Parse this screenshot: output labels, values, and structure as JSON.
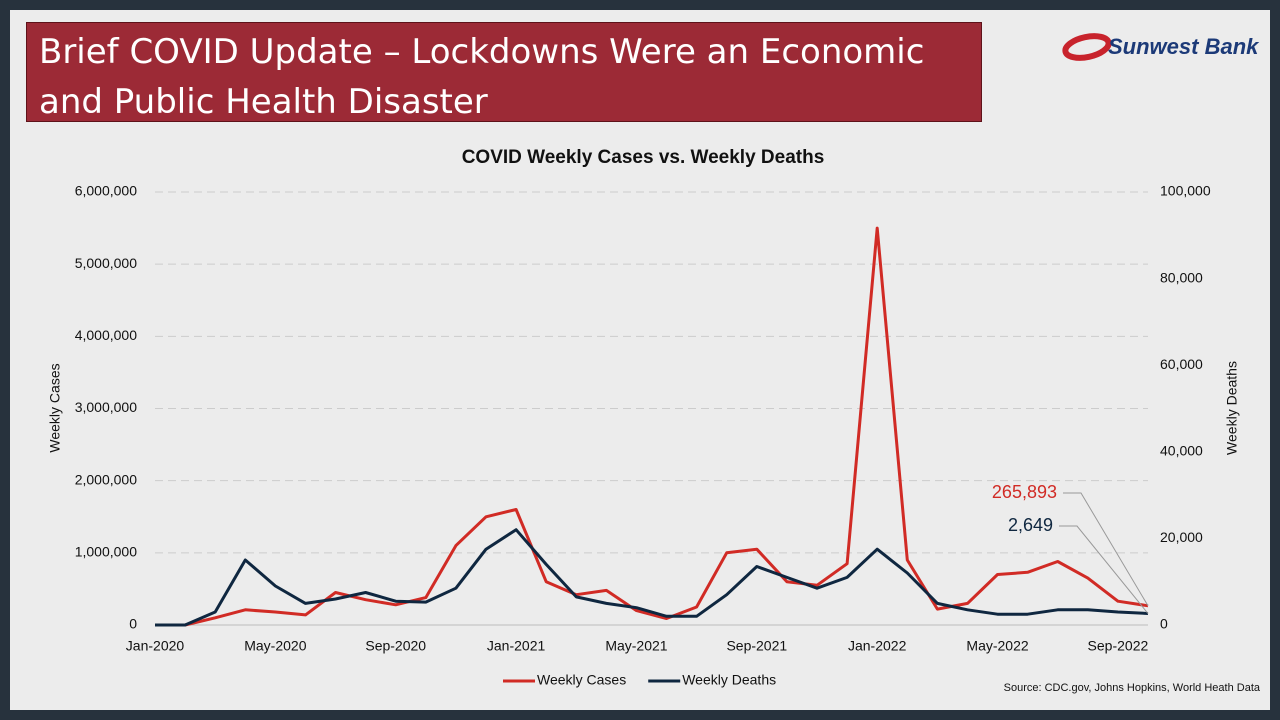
{
  "slide": {
    "title": "Brief COVID Update – Lockdowns Were an Economic and Public Health Disaster",
    "logo": "Sunwest Bank",
    "source": "Source: CDC.gov, Johns Hopkins, World Heath Data"
  },
  "chart_data": {
    "type": "line",
    "title": "COVID Weekly Cases vs. Weekly Deaths",
    "y_label": "Weekly Cases",
    "y2_label": "Weekly Deaths",
    "x": [
      "2020-01",
      "2020-02",
      "2020-03",
      "2020-04",
      "2020-05",
      "2020-06",
      "2020-07",
      "2020-08",
      "2020-09",
      "2020-10",
      "2020-11",
      "2020-12",
      "2021-01",
      "2021-02",
      "2021-03",
      "2021-04",
      "2021-05",
      "2021-06",
      "2021-07",
      "2021-08",
      "2021-09",
      "2021-10",
      "2021-11",
      "2021-12",
      "2022-01",
      "2022-02",
      "2022-03",
      "2022-04",
      "2022-05",
      "2022-06",
      "2022-07",
      "2022-08",
      "2022-09",
      "2022-10"
    ],
    "xlim": [
      "2020-01",
      "2022-10"
    ],
    "xticks": [
      {
        "value": "2020-01",
        "label": "Jan-2020"
      },
      {
        "value": "2020-05",
        "label": "May-2020"
      },
      {
        "value": "2020-09",
        "label": "Sep-2020"
      },
      {
        "value": "2021-01",
        "label": "Jan-2021"
      },
      {
        "value": "2021-05",
        "label": "May-2021"
      },
      {
        "value": "2021-09",
        "label": "Sep-2021"
      },
      {
        "value": "2022-01",
        "label": "Jan-2022"
      },
      {
        "value": "2022-05",
        "label": "May-2022"
      },
      {
        "value": "2022-09",
        "label": "Sep-2022"
      }
    ],
    "ylim": [
      0,
      6000000
    ],
    "yticks": [
      0,
      {
        "value": 1000000,
        "label": "1,000,000"
      },
      {
        "value": 2000000,
        "label": "2,000,000"
      },
      {
        "value": 3000000,
        "label": "3,000,000"
      },
      {
        "value": 4000000,
        "label": "4,000,000"
      },
      {
        "value": 5000000,
        "label": "5,000,000"
      },
      {
        "value": 6000000,
        "label": "6,000,000"
      }
    ],
    "y2lim": [
      0,
      100000
    ],
    "y2ticks": [
      0,
      {
        "value": 20000,
        "label": "20,000"
      },
      {
        "value": 40000,
        "label": "40,000"
      },
      {
        "value": 60000,
        "label": "60,000"
      },
      {
        "value": 80000,
        "label": "80,000"
      },
      {
        "value": 100000,
        "label": "100,000"
      }
    ],
    "grid": true,
    "legend": "bottom",
    "series": [
      {
        "name": "Weekly Cases",
        "color": "#d12b25",
        "values": [
          0,
          0,
          100000,
          210000,
          180000,
          140000,
          450000,
          350000,
          280000,
          380000,
          1100000,
          1500000,
          1600000,
          600000,
          420000,
          480000,
          200000,
          90000,
          250000,
          1000000,
          1050000,
          600000,
          550000,
          850000,
          5500000,
          900000,
          220000,
          300000,
          700000,
          730000,
          880000,
          650000,
          330000,
          265893
        ],
        "value_labels": [
          null,
          null,
          null,
          null,
          null,
          null,
          null,
          null,
          null,
          null,
          null,
          null,
          null,
          null,
          null,
          null,
          null,
          null,
          null,
          null,
          null,
          null,
          null,
          null,
          null,
          null,
          null,
          null,
          null,
          null,
          null,
          null,
          null,
          "265,893"
        ]
      },
      {
        "name": "Weekly Deaths",
        "color": "#0f2740",
        "axis": "y2",
        "values": [
          0,
          0,
          3000,
          15000,
          9000,
          5000,
          6000,
          7500,
          5500,
          5300,
          8500,
          17500,
          22000,
          14000,
          6500,
          5000,
          4000,
          2000,
          2000,
          7000,
          13500,
          11000,
          8500,
          11000,
          17500,
          12000,
          5000,
          3500,
          2500,
          2500,
          3500,
          3500,
          3000,
          2649
        ],
        "value_labels": [
          null,
          null,
          null,
          null,
          null,
          null,
          null,
          null,
          null,
          null,
          null,
          null,
          null,
          null,
          null,
          null,
          null,
          null,
          null,
          null,
          null,
          null,
          null,
          null,
          null,
          null,
          null,
          null,
          null,
          null,
          null,
          null,
          null,
          "2,649"
        ]
      }
    ]
  }
}
